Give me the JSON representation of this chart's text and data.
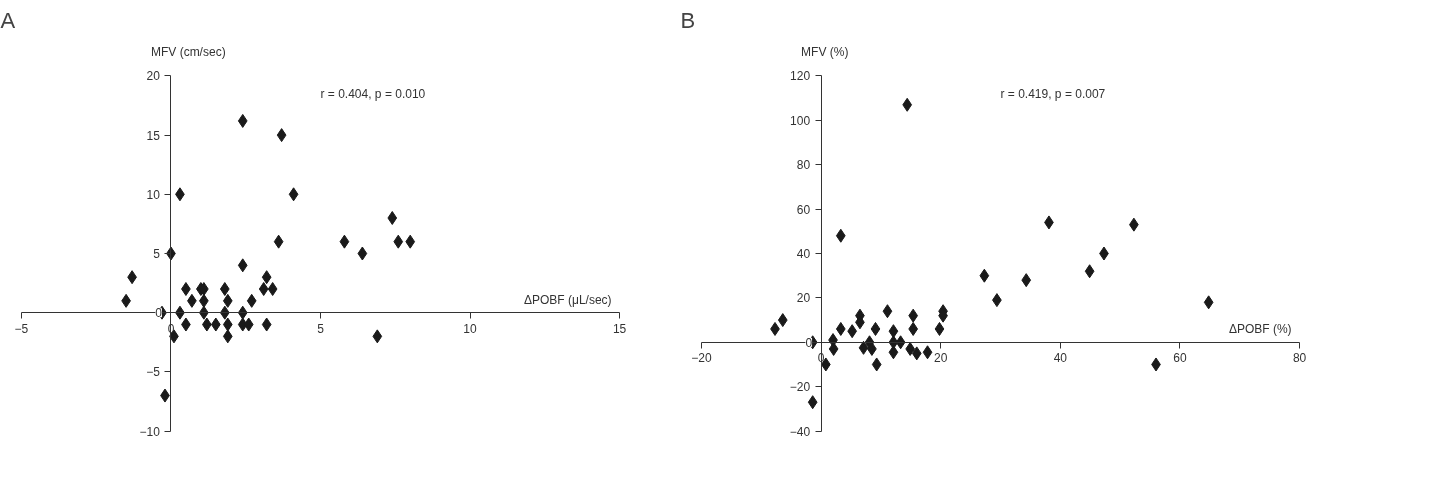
{
  "chart_data": [
    {
      "type": "scatter",
      "title": "A",
      "xlabel": "ΔPOBF (μL/sec)",
      "ylabel": "MFV (cm/sec)",
      "annotations": [
        "r = 0.404, p = 0.010"
      ],
      "marker": "diamond",
      "xlim": [
        -5,
        15
      ],
      "ylim": [
        -10,
        20
      ],
      "xticks": [
        {
          "value": -5,
          "label": "−5"
        },
        0,
        5,
        10,
        15
      ],
      "yticks": [
        {
          "value": -10,
          "label": "−10"
        },
        {
          "value": -5,
          "label": "−5"
        },
        0,
        5,
        10,
        15,
        20
      ],
      "series": [
        {
          "color": "#1a1a1a",
          "x": [
            -1.5,
            -1.3,
            -0.3,
            0,
            0.3,
            0.3,
            0.1,
            -0.2,
            0.5,
            0.5,
            0.7,
            1.0,
            1.1,
            1.1,
            1.1,
            1.2,
            1.5,
            1.8,
            1.9,
            1.8,
            1.9,
            1.9,
            2.4,
            2.4,
            2.4,
            2.4,
            2.6,
            2.7,
            3.2,
            3.1,
            3.4,
            3.2,
            3.6,
            3.7,
            4.1,
            5.8,
            6.4,
            7.4,
            7.6,
            8.0,
            6.9
          ],
          "values": [
            1,
            3,
            0,
            5,
            10,
            0,
            -2,
            -7,
            2,
            -1,
            1,
            2,
            2,
            1,
            0,
            -1,
            -1,
            2,
            1,
            0,
            -1,
            -2,
            0,
            4,
            16.2,
            -1,
            -1,
            1,
            3,
            2,
            2,
            -1,
            6,
            15,
            10,
            6,
            5,
            8,
            6,
            6,
            -2
          ]
        }
      ]
    },
    {
      "type": "scatter",
      "title": "B",
      "xlabel": "ΔPOBF (%)",
      "ylabel": "MFV (%)",
      "annotations": [
        "r = 0.419, p = 0.007"
      ],
      "marker": "diamond",
      "xlim": [
        -20,
        80
      ],
      "ylim": [
        -40,
        120
      ],
      "xticks": [
        {
          "value": -20,
          "label": "−20"
        },
        0,
        20,
        40,
        60,
        80
      ],
      "yticks": [
        {
          "value": -40,
          "label": "−40"
        },
        {
          "value": -20,
          "label": "−20"
        },
        0,
        20,
        40,
        60,
        80,
        100,
        120
      ],
      "series": [
        {
          "color": "#1a1a1a",
          "x": [
            -7.7,
            -6.4,
            -1.4,
            -1.4,
            0.8,
            2.0,
            2.1,
            3.3,
            3.3,
            5.2,
            6.5,
            6.5,
            7.1,
            8.1,
            8.5,
            9.1,
            9.3,
            11.1,
            12.1,
            12.1,
            12.1,
            13.3,
            14.4,
            14.9,
            15.4,
            15.4,
            16.0,
            17.8,
            19.8,
            20.4,
            20.4,
            27.3,
            29.4,
            34.3,
            38.1,
            44.9,
            47.3,
            52.3,
            56.0,
            64.8
          ],
          "values": [
            6,
            10,
            0,
            -27,
            -10,
            1,
            -3,
            48,
            6,
            5,
            12,
            9,
            -2.5,
            0,
            -3,
            6,
            -10,
            14,
            5,
            0,
            -4.5,
            0,
            107,
            -3,
            12,
            6,
            -5,
            -4.5,
            6,
            14,
            12,
            30,
            19,
            28,
            54,
            32,
            40,
            53,
            -10,
            18
          ]
        }
      ]
    }
  ]
}
